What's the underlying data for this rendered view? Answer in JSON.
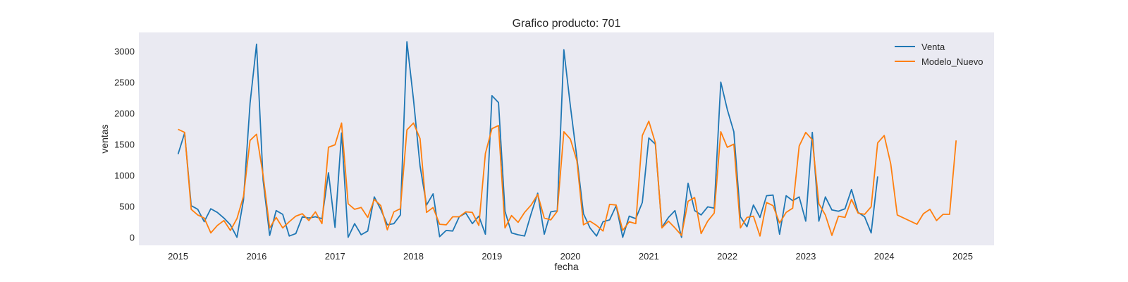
{
  "chart_data": {
    "type": "line",
    "title": "Grafico producto: 701",
    "xlabel": "fecha",
    "ylabel": "ventas",
    "xlim": [
      2014.5,
      2025.4
    ],
    "ylim": [
      -130,
      3300
    ],
    "x_ticks": [
      2015,
      2016,
      2017,
      2018,
      2019,
      2020,
      2021,
      2022,
      2023,
      2024,
      2025
    ],
    "y_ticks": [
      0,
      500,
      1000,
      1500,
      2000,
      2500,
      3000
    ],
    "grid": false,
    "background": "#eaeaf2",
    "legend": "top-right",
    "series": [
      {
        "name": "Venta",
        "color": "#1f77b4",
        "x_start": 2015.0,
        "step": 0.0833333,
        "values": [
          1340,
          1680,
          510,
          450,
          250,
          460,
          400,
          310,
          200,
          0,
          600,
          2160,
          3110,
          920,
          30,
          430,
          370,
          20,
          60,
          330,
          310,
          330,
          300,
          1040,
          160,
          1680,
          0,
          220,
          40,
          100,
          650,
          450,
          200,
          220,
          360,
          3150,
          2220,
          1150,
          520,
          700,
          10,
          110,
          100,
          330,
          390,
          220,
          340,
          50,
          2280,
          2170,
          420,
          70,
          40,
          20,
          380,
          710,
          50,
          410,
          430,
          3020,
          2110,
          1280,
          380,
          150,
          20,
          250,
          280,
          510,
          0,
          340,
          300,
          560,
          1600,
          1500,
          160,
          320,
          430,
          0,
          870,
          430,
          360,
          490,
          470,
          2500,
          2060,
          1700,
          330,
          170,
          520,
          320,
          670,
          680,
          50,
          670,
          590,
          650,
          260,
          1690,
          260,
          650,
          440,
          420,
          460,
          770,
          400,
          330,
          70,
          980
        ]
      },
      {
        "name": "Modelo_Nuevo",
        "color": "#ff7f0e",
        "x_start": 2015.0,
        "step": 0.0833333,
        "values": [
          1740,
          1690,
          450,
          360,
          310,
          70,
          190,
          270,
          110,
          300,
          660,
          1560,
          1660,
          1000,
          150,
          320,
          150,
          250,
          340,
          380,
          270,
          410,
          220,
          1450,
          1490,
          1840,
          540,
          450,
          480,
          320,
          610,
          510,
          120,
          410,
          460,
          1730,
          1840,
          1590,
          400,
          480,
          210,
          200,
          330,
          330,
          410,
          400,
          190,
          1350,
          1750,
          1800,
          150,
          350,
          240,
          400,
          520,
          690,
          310,
          280,
          420,
          1700,
          1580,
          1230,
          200,
          260,
          190,
          100,
          530,
          520,
          110,
          250,
          220,
          1640,
          1870,
          1520,
          150,
          260,
          150,
          30,
          580,
          640,
          60,
          260,
          390,
          1700,
          1450,
          1500,
          150,
          320,
          340,
          20,
          560,
          510,
          230,
          400,
          470,
          1470,
          1690,
          1570,
          540,
          360,
          30,
          340,
          320,
          610,
          390,
          370,
          490,
          1520,
          1640,
          1180,
          360,
          310,
          260,
          210,
          380,
          450,
          270,
          370,
          370,
          1560
        ]
      }
    ]
  }
}
